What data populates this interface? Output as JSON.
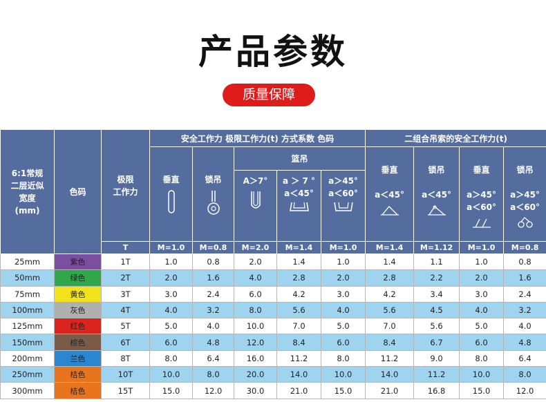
{
  "title": "产品参数",
  "badge": "质量保障",
  "header": {
    "spec": "6:1常规\n二层近似\n宽度\n(mm)",
    "color": "色码",
    "wll": "极限\n工作力",
    "single_group": "安全工作力  极限工作力(t)  方式系数  色码",
    "double_group": "二组合吊索的安全工作力(t)",
    "vertical": "垂直",
    "choke": "锁吊",
    "basket": "篮吊",
    "b1": "A＞7°",
    "b2": "a ＞ 7 °\na＜45°",
    "b3": "a＞45°\na＜60°",
    "d1": "垂直\n\na＜45°",
    "d2": "锁吊\n\na＜45°",
    "d3": "垂直\n\na＞45°\na＜60°",
    "d4": "锁吊\n\na＞45°\na＜60°",
    "unit": "T",
    "m": [
      "M=1.0",
      "M=0.8",
      "M=2.0",
      "M=1.4",
      "M=1.0",
      "M=1.4",
      "M=1.12",
      "M=1.0",
      "M=0.8"
    ]
  },
  "rows": [
    {
      "spec": "25mm",
      "color": "紫色",
      "hex": "#7b4ea0",
      "wll": "1T",
      "v": [
        "1.0",
        "0.8",
        "2.0",
        "1.4",
        "1.0",
        "1.4",
        "1.1",
        "1.0",
        "0.8"
      ]
    },
    {
      "spec": "50mm",
      "color": "绿色",
      "hex": "#2ea84b",
      "wll": "2T",
      "v": [
        "2.0",
        "1.6",
        "4.0",
        "2.8",
        "2.0",
        "2.8",
        "2.2",
        "2.0",
        "1.6"
      ]
    },
    {
      "spec": "75mm",
      "color": "黄色",
      "hex": "#f2e21c",
      "wll": "3T",
      "v": [
        "3.0",
        "2.4",
        "6.0",
        "4.2",
        "3.0",
        "4.2",
        "3.4",
        "3.0",
        "2.4"
      ]
    },
    {
      "spec": "100mm",
      "color": "灰色",
      "hex": "#b0b0b0",
      "wll": "4T",
      "v": [
        "4.0",
        "3.2",
        "8.0",
        "5.6",
        "4.0",
        "5.6",
        "4.5",
        "4.0",
        "3.2"
      ]
    },
    {
      "spec": "125mm",
      "color": "红色",
      "hex": "#d9251e",
      "wll": "5T",
      "v": [
        "5.0",
        "4.0",
        "10.0",
        "7.0",
        "5.0",
        "7.0",
        "5.6",
        "5.0",
        "4.0"
      ]
    },
    {
      "spec": "150mm",
      "color": "棕色",
      "hex": "#7a5b48",
      "wll": "6T",
      "v": [
        "6.0",
        "4.8",
        "12.0",
        "8.4",
        "6.0",
        "8.4",
        "6.7",
        "6.0",
        "4.8"
      ]
    },
    {
      "spec": "200mm",
      "color": "兰色",
      "hex": "#2a86d1",
      "wll": "8T",
      "v": [
        "8.0",
        "6.4",
        "16.0",
        "11.2",
        "8.0",
        "11.2",
        "9.0",
        "8.0",
        "6.4"
      ]
    },
    {
      "spec": "250mm",
      "color": "桔色",
      "hex": "#e8751d",
      "wll": "10T",
      "v": [
        "10.0",
        "8.0",
        "20.0",
        "14.0",
        "10.0",
        "14.0",
        "11.2",
        "10.0",
        "8.0"
      ]
    },
    {
      "spec": "300mm",
      "color": "桔色",
      "hex": "#e8751d",
      "wll": "15T",
      "v": [
        "15.0",
        "12.0",
        "30.0",
        "21.0",
        "15.0",
        "21.0",
        "16.8",
        "15.0",
        "12.0"
      ]
    }
  ]
}
